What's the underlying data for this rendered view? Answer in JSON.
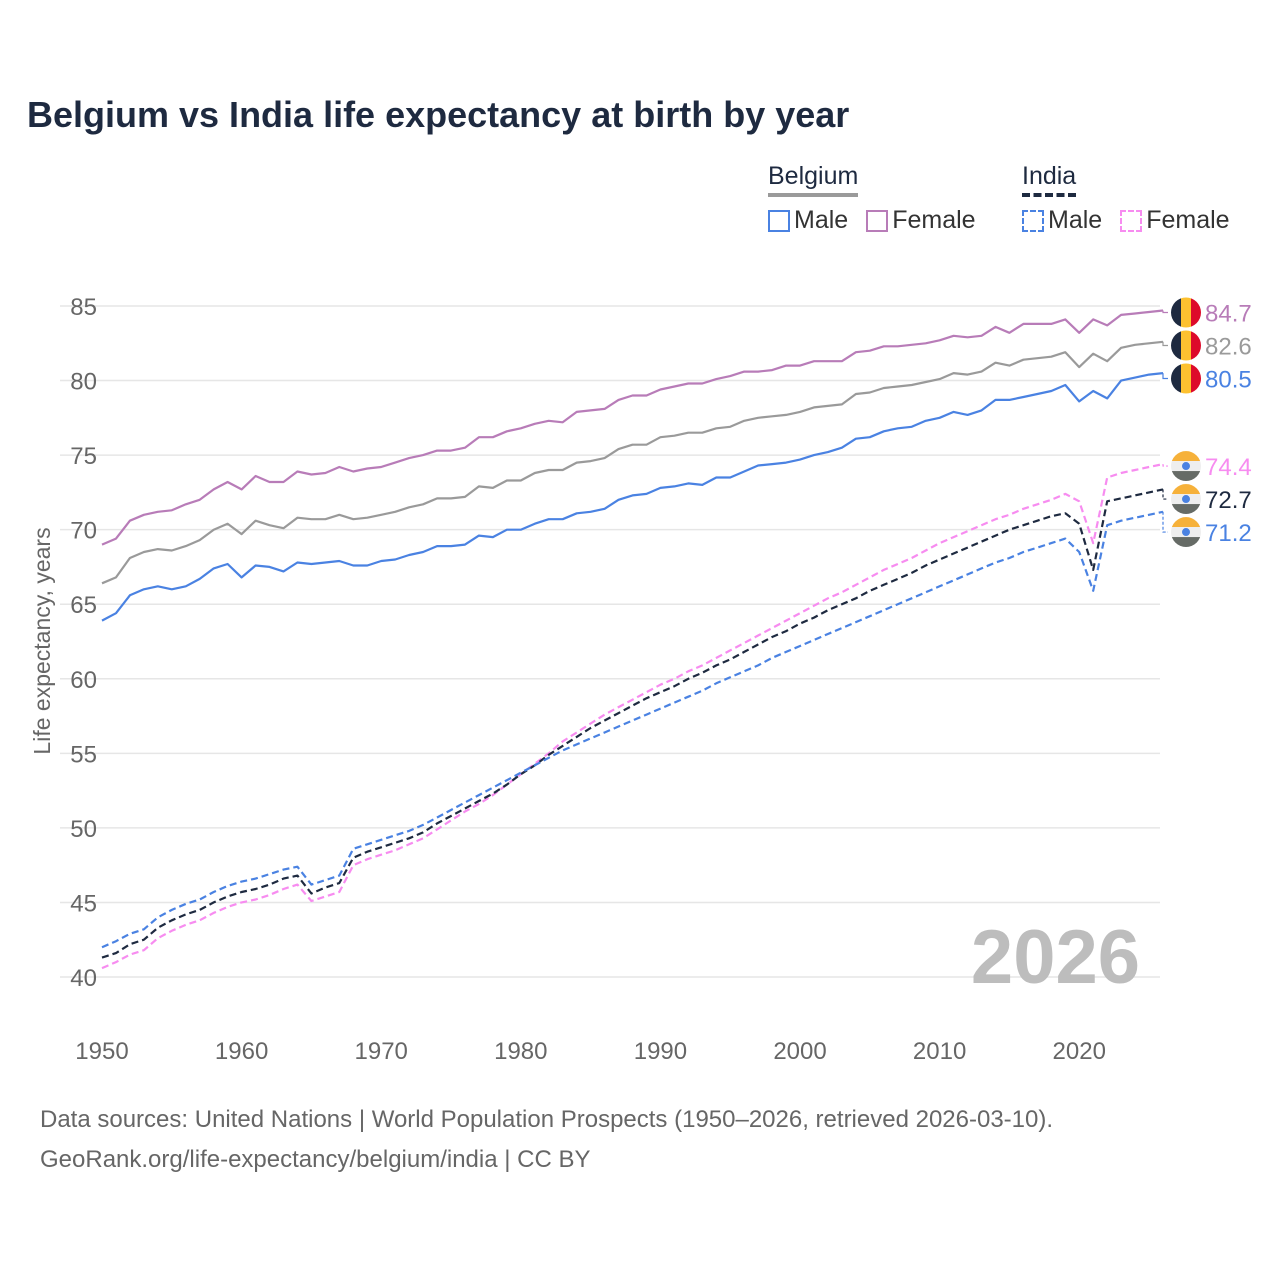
{
  "chart_data": {
    "type": "line",
    "title": "Belgium vs India life expectancy at birth by year",
    "xlabel": "",
    "ylabel": "Life expectancy, years",
    "xlim": [
      1950,
      2026
    ],
    "ylim": [
      40,
      85
    ],
    "x_ticks": [
      "1950",
      "1960",
      "1970",
      "1980",
      "1990",
      "2000",
      "2010",
      "2020"
    ],
    "y_ticks": [
      "40",
      "45",
      "50",
      "55",
      "60",
      "65",
      "70",
      "75",
      "80",
      "85"
    ],
    "grid": true,
    "year_watermark": "2026",
    "x_start": 1950,
    "legend": {
      "placement": "top-right",
      "groups": [
        {
          "name": "Belgium",
          "items": [
            "Male",
            "Female"
          ]
        },
        {
          "name": "India",
          "items": [
            "Male",
            "Female"
          ]
        }
      ]
    },
    "series": [
      {
        "name": "Belgium Female",
        "country": "Belgium",
        "color": "#b87cb8",
        "dash": false,
        "end_label": "84.7",
        "values": [
          69.0,
          69.4,
          70.6,
          71.0,
          71.2,
          71.3,
          71.7,
          72.0,
          72.7,
          73.2,
          72.7,
          73.6,
          73.2,
          73.2,
          73.9,
          73.7,
          73.8,
          74.2,
          73.9,
          74.1,
          74.2,
          74.5,
          74.8,
          75.0,
          75.3,
          75.3,
          75.5,
          76.2,
          76.2,
          76.6,
          76.8,
          77.1,
          77.3,
          77.2,
          77.9,
          78.0,
          78.1,
          78.7,
          79.0,
          79.0,
          79.4,
          79.6,
          79.8,
          79.8,
          80.1,
          80.3,
          80.6,
          80.6,
          80.7,
          81.0,
          81.0,
          81.3,
          81.3,
          81.3,
          81.9,
          82.0,
          82.3,
          82.3,
          82.4,
          82.5,
          82.7,
          83.0,
          82.9,
          83.0,
          83.6,
          83.2,
          83.8,
          83.8,
          83.8,
          84.1,
          83.2,
          84.1,
          83.7,
          84.4,
          84.5,
          84.6,
          84.7
        ]
      },
      {
        "name": "Belgium Total",
        "country": "Belgium",
        "color": "#9a9a9a",
        "dash": false,
        "end_label": "82.6",
        "values": [
          66.4,
          66.8,
          68.1,
          68.5,
          68.7,
          68.6,
          68.9,
          69.3,
          70.0,
          70.4,
          69.7,
          70.6,
          70.3,
          70.1,
          70.8,
          70.7,
          70.7,
          71.0,
          70.7,
          70.8,
          71.0,
          71.2,
          71.5,
          71.7,
          72.1,
          72.1,
          72.2,
          72.9,
          72.8,
          73.3,
          73.3,
          73.8,
          74.0,
          74.0,
          74.5,
          74.6,
          74.8,
          75.4,
          75.7,
          75.7,
          76.2,
          76.3,
          76.5,
          76.5,
          76.8,
          76.9,
          77.3,
          77.5,
          77.6,
          77.7,
          77.9,
          78.2,
          78.3,
          78.4,
          79.1,
          79.2,
          79.5,
          79.6,
          79.7,
          79.9,
          80.1,
          80.5,
          80.4,
          80.6,
          81.2,
          81.0,
          81.4,
          81.5,
          81.6,
          81.9,
          80.9,
          81.8,
          81.3,
          82.2,
          82.4,
          82.5,
          82.6
        ]
      },
      {
        "name": "Belgium Male",
        "country": "Belgium",
        "color": "#4a82e2",
        "dash": false,
        "end_label": "80.5",
        "values": [
          63.9,
          64.4,
          65.6,
          66.0,
          66.2,
          66.0,
          66.2,
          66.7,
          67.4,
          67.7,
          66.8,
          67.6,
          67.5,
          67.2,
          67.8,
          67.7,
          67.8,
          67.9,
          67.6,
          67.6,
          67.9,
          68.0,
          68.3,
          68.5,
          68.9,
          68.9,
          69.0,
          69.6,
          69.5,
          70.0,
          70.0,
          70.4,
          70.7,
          70.7,
          71.1,
          71.2,
          71.4,
          72.0,
          72.3,
          72.4,
          72.8,
          72.9,
          73.1,
          73.0,
          73.5,
          73.5,
          73.9,
          74.3,
          74.4,
          74.5,
          74.7,
          75.0,
          75.2,
          75.5,
          76.1,
          76.2,
          76.6,
          76.8,
          76.9,
          77.3,
          77.5,
          77.9,
          77.7,
          78.0,
          78.7,
          78.7,
          78.9,
          79.1,
          79.3,
          79.7,
          78.6,
          79.3,
          78.8,
          80.0,
          80.2,
          80.4,
          80.5
        ]
      },
      {
        "name": "India Female",
        "country": "India",
        "color": "#f78cf0",
        "dash": true,
        "end_label": "74.4",
        "values": [
          40.6,
          41.0,
          41.5,
          41.8,
          42.6,
          43.1,
          43.5,
          43.8,
          44.3,
          44.7,
          45.0,
          45.2,
          45.5,
          45.9,
          46.2,
          45.1,
          45.4,
          45.7,
          47.5,
          47.9,
          48.2,
          48.5,
          48.9,
          49.3,
          49.9,
          50.5,
          51.1,
          51.6,
          52.2,
          52.9,
          53.6,
          54.3,
          55.0,
          55.8,
          56.4,
          57.0,
          57.6,
          58.1,
          58.6,
          59.1,
          59.6,
          60.0,
          60.5,
          60.9,
          61.4,
          61.9,
          62.4,
          62.9,
          63.4,
          63.9,
          64.4,
          64.9,
          65.4,
          65.8,
          66.3,
          66.8,
          67.3,
          67.7,
          68.1,
          68.6,
          69.1,
          69.5,
          69.9,
          70.3,
          70.7,
          71.0,
          71.4,
          71.7,
          72.0,
          72.4,
          71.9,
          69.1,
          73.5,
          73.8,
          74.0,
          74.2,
          74.4
        ]
      },
      {
        "name": "India Total",
        "country": "India",
        "color": "#1e2a40",
        "dash": true,
        "end_label": "72.7",
        "values": [
          41.3,
          41.6,
          42.2,
          42.5,
          43.3,
          43.8,
          44.2,
          44.5,
          45.0,
          45.4,
          45.7,
          45.9,
          46.2,
          46.6,
          46.8,
          45.6,
          46.0,
          46.3,
          48.0,
          48.4,
          48.7,
          49.0,
          49.3,
          49.7,
          50.3,
          50.8,
          51.3,
          51.8,
          52.3,
          52.9,
          53.6,
          54.2,
          54.9,
          55.5,
          56.1,
          56.7,
          57.2,
          57.7,
          58.2,
          58.7,
          59.1,
          59.5,
          60.0,
          60.4,
          60.9,
          61.3,
          61.8,
          62.3,
          62.8,
          63.2,
          63.7,
          64.1,
          64.6,
          65.0,
          65.4,
          65.9,
          66.3,
          66.7,
          67.1,
          67.6,
          68.0,
          68.4,
          68.8,
          69.2,
          69.6,
          70.0,
          70.3,
          70.6,
          70.9,
          71.1,
          70.4,
          67.3,
          71.9,
          72.1,
          72.3,
          72.5,
          72.7
        ]
      },
      {
        "name": "India Male",
        "country": "India",
        "color": "#4a82e2",
        "dash": true,
        "end_label": "71.2",
        "values": [
          42.0,
          42.4,
          42.9,
          43.2,
          44.0,
          44.5,
          44.9,
          45.2,
          45.7,
          46.1,
          46.4,
          46.6,
          46.9,
          47.2,
          47.4,
          46.2,
          46.5,
          46.8,
          48.6,
          48.9,
          49.2,
          49.5,
          49.8,
          50.2,
          50.7,
          51.2,
          51.7,
          52.2,
          52.7,
          53.2,
          53.7,
          54.2,
          54.7,
          55.2,
          55.6,
          56.0,
          56.4,
          56.8,
          57.2,
          57.6,
          58.0,
          58.4,
          58.8,
          59.2,
          59.7,
          60.1,
          60.5,
          60.9,
          61.4,
          61.8,
          62.2,
          62.6,
          63.0,
          63.4,
          63.8,
          64.2,
          64.6,
          65.0,
          65.4,
          65.8,
          66.2,
          66.6,
          67.0,
          67.4,
          67.8,
          68.1,
          68.5,
          68.8,
          69.1,
          69.4,
          68.5,
          65.9,
          70.3,
          70.6,
          70.8,
          71.0,
          71.2
        ]
      }
    ]
  },
  "footer": {
    "line1": "Data sources: United Nations | World Population Prospects (1950–2026, retrieved 2026-03-10).",
    "line2": "GeoRank.org/life-expectancy/belgium/india | CC BY"
  }
}
